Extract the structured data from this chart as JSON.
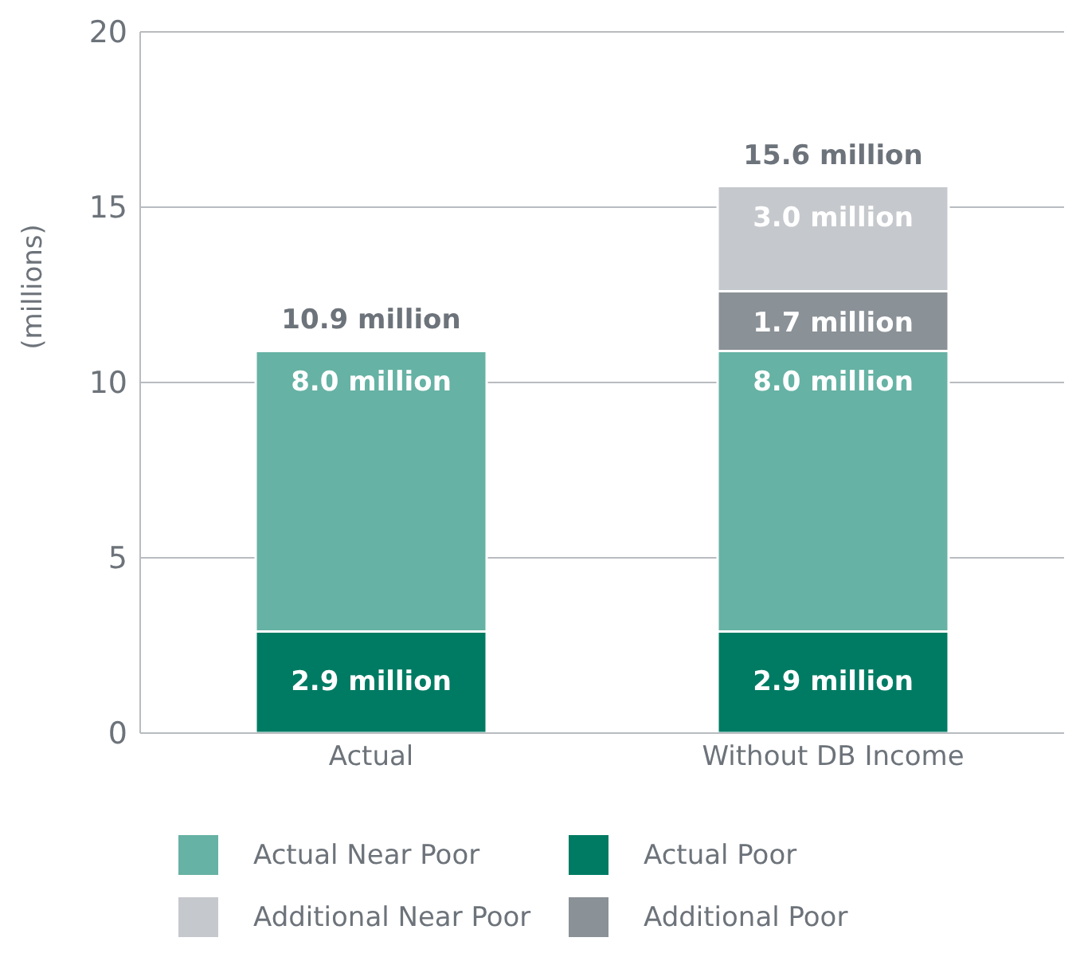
{
  "chart_data": {
    "type": "bar",
    "stacked": true,
    "ylabel": "(millions)",
    "categories": [
      "Actual",
      "Without DB Income"
    ],
    "series": [
      {
        "name": "Actual Poor",
        "color": "#007b63",
        "values": [
          2.9,
          2.9
        ],
        "value_labels": [
          "2.9 million",
          "2.9 million"
        ]
      },
      {
        "name": "Actual Near Poor",
        "color": "#66b2a4",
        "values": [
          8.0,
          8.0
        ],
        "value_labels": [
          "8.0 million",
          "8.0 million"
        ]
      },
      {
        "name": "Additional Poor",
        "color": "#8a9197",
        "values": [
          null,
          1.7
        ],
        "value_labels": [
          null,
          "1.7 million"
        ]
      },
      {
        "name": "Additional Near Poor",
        "color": "#c5c8cc",
        "values": [
          null,
          3.0
        ],
        "value_labels": [
          null,
          "3.0 million"
        ]
      }
    ],
    "totals": [
      "10.9 million",
      "15.6 million"
    ],
    "ylim": [
      0,
      20
    ],
    "yticks": [
      0,
      5,
      10,
      15,
      20
    ],
    "grid": "y",
    "legend": "bottom"
  }
}
